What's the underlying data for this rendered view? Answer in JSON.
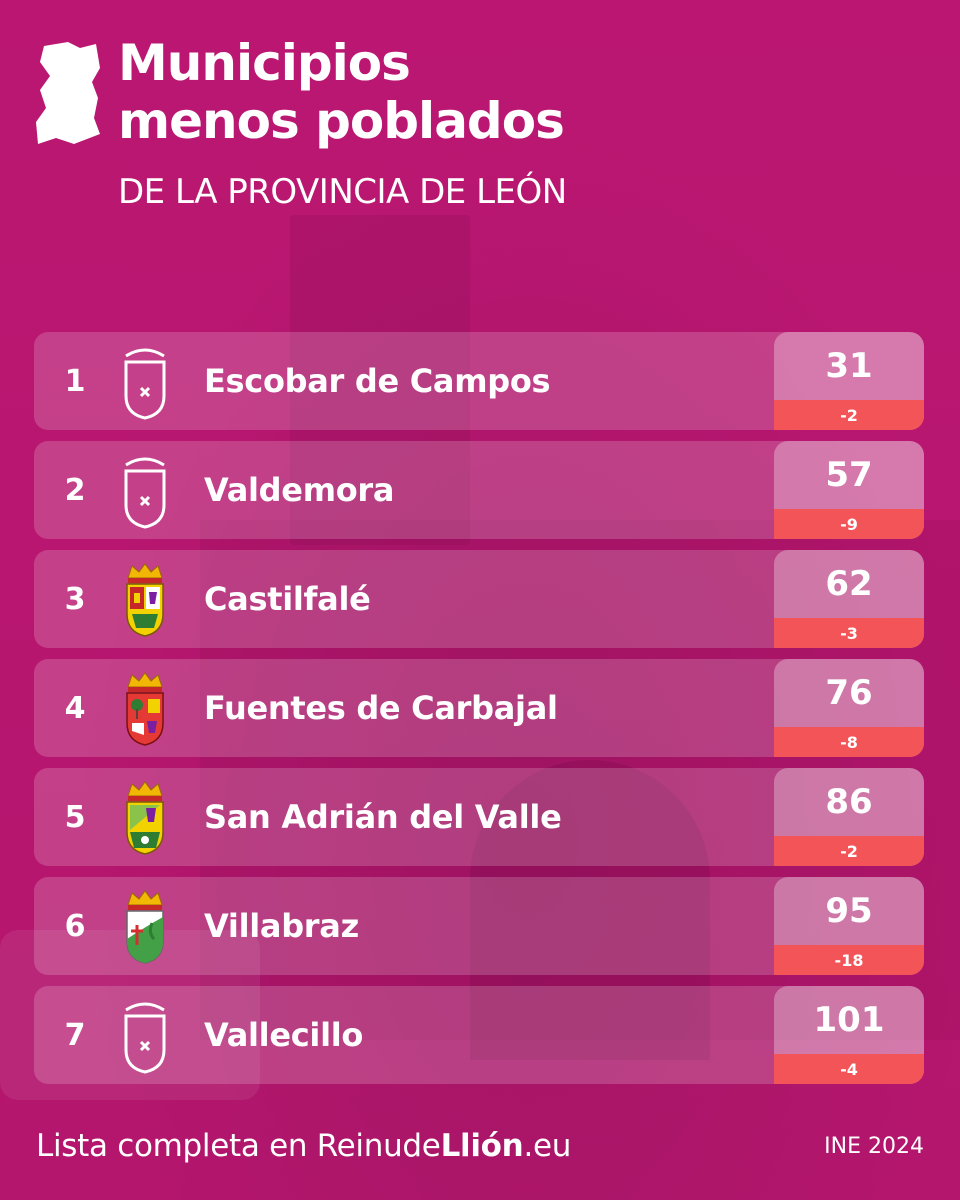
{
  "header": {
    "title_line1": "Municipios",
    "title_line2": "menos poblados",
    "subtitle": "DE LA PROVINCIA DE LEÓN"
  },
  "rows": [
    {
      "rank": "1",
      "name": "Escobar de Campos",
      "population": "31",
      "change": "-2",
      "crest": "blank-shield-icon"
    },
    {
      "rank": "2",
      "name": "Valdemora",
      "population": "57",
      "change": "-9",
      "crest": "blank-shield-icon"
    },
    {
      "rank": "3",
      "name": "Castilfalé",
      "population": "62",
      "change": "-3",
      "crest": "coat-of-arms-icon"
    },
    {
      "rank": "4",
      "name": "Fuentes de Carbajal",
      "population": "76",
      "change": "-8",
      "crest": "coat-of-arms-icon"
    },
    {
      "rank": "5",
      "name": "San Adrián del Valle",
      "population": "86",
      "change": "-2",
      "crest": "coat-of-arms-icon"
    },
    {
      "rank": "6",
      "name": "Villabraz",
      "population": "95",
      "change": "-18",
      "crest": "coat-of-arms-icon"
    },
    {
      "rank": "7",
      "name": "Vallecillo",
      "population": "101",
      "change": "-4",
      "crest": "blank-shield-icon"
    }
  ],
  "footer": {
    "prefix": "Lista completa en ",
    "site_regular": "Reinude",
    "site_bold": "Llión",
    "site_suffix": ".eu",
    "source": "INE 2024"
  },
  "colors": {
    "background": "#b8166f",
    "change_bar": "#f25457",
    "text": "#ffffff"
  }
}
